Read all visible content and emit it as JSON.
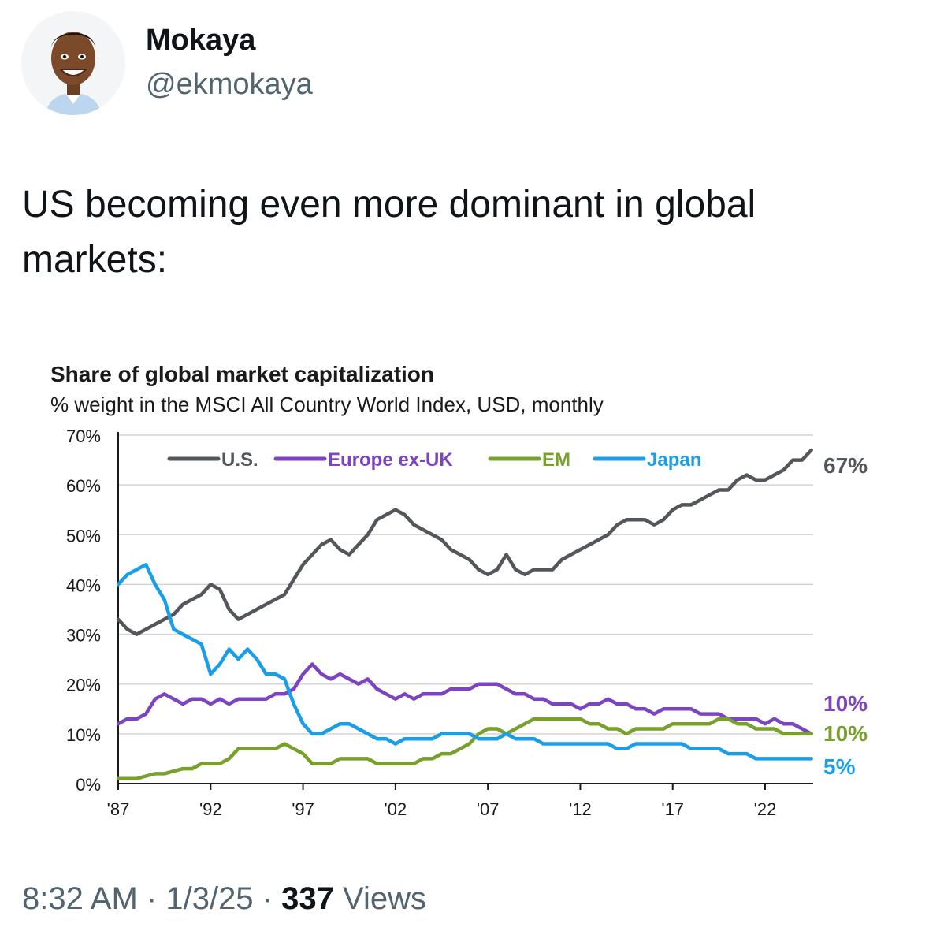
{
  "author": {
    "name": "Mokaya",
    "handle": "@ekmokaya",
    "avatar_icon": "cartoon-avatar-icon"
  },
  "tweet": {
    "text": "US becoming even more dominant in global markets:"
  },
  "footer": {
    "time": "8:32 AM",
    "date": "1/3/25",
    "separator": "·",
    "views_count": "337",
    "views_label": "Views"
  },
  "chart_data": {
    "type": "line",
    "title": "Share of global market capitalization",
    "subtitle": "% weight in the MSCI All Country World Index, USD, monthly",
    "xlabel": "",
    "ylabel": "",
    "ylim": [
      0,
      70
    ],
    "xlim": [
      1987,
      2024.6
    ],
    "y_ticks": [
      0,
      10,
      20,
      30,
      40,
      50,
      60,
      70
    ],
    "y_tick_labels": [
      "0%",
      "10%",
      "20%",
      "30%",
      "40%",
      "50%",
      "60%",
      "70%"
    ],
    "x_ticks": [
      1987,
      1992,
      1997,
      2002,
      2007,
      2012,
      2017,
      2022
    ],
    "x_tick_labels": [
      "'87",
      "'92",
      "'97",
      "'02",
      "'07",
      "'12",
      "'17",
      "'22"
    ],
    "grid": true,
    "legend_position": "top-left",
    "series": [
      {
        "name": "U.S.",
        "color": "#53565a",
        "end_label": "67%",
        "points": [
          [
            1987,
            33
          ],
          [
            1987.5,
            31
          ],
          [
            1988,
            30
          ],
          [
            1988.5,
            31
          ],
          [
            1989,
            32
          ],
          [
            1989.5,
            33
          ],
          [
            1990,
            34
          ],
          [
            1990.5,
            36
          ],
          [
            1991,
            37
          ],
          [
            1991.5,
            38
          ],
          [
            1992,
            40
          ],
          [
            1992.5,
            39
          ],
          [
            1993,
            35
          ],
          [
            1993.5,
            33
          ],
          [
            1994,
            34
          ],
          [
            1994.5,
            35
          ],
          [
            1995,
            36
          ],
          [
            1995.5,
            37
          ],
          [
            1996,
            38
          ],
          [
            1996.5,
            41
          ],
          [
            1997,
            44
          ],
          [
            1997.5,
            46
          ],
          [
            1998,
            48
          ],
          [
            1998.5,
            49
          ],
          [
            1999,
            47
          ],
          [
            1999.5,
            46
          ],
          [
            2000,
            48
          ],
          [
            2000.5,
            50
          ],
          [
            2001,
            53
          ],
          [
            2001.5,
            54
          ],
          [
            2002,
            55
          ],
          [
            2002.5,
            54
          ],
          [
            2003,
            52
          ],
          [
            2003.5,
            51
          ],
          [
            2004,
            50
          ],
          [
            2004.5,
            49
          ],
          [
            2005,
            47
          ],
          [
            2005.5,
            46
          ],
          [
            2006,
            45
          ],
          [
            2006.5,
            43
          ],
          [
            2007,
            42
          ],
          [
            2007.5,
            43
          ],
          [
            2008,
            46
          ],
          [
            2008.5,
            43
          ],
          [
            2009,
            42
          ],
          [
            2009.5,
            43
          ],
          [
            2010,
            43
          ],
          [
            2010.5,
            43
          ],
          [
            2011,
            45
          ],
          [
            2011.5,
            46
          ],
          [
            2012,
            47
          ],
          [
            2012.5,
            48
          ],
          [
            2013,
            49
          ],
          [
            2013.5,
            50
          ],
          [
            2014,
            52
          ],
          [
            2014.5,
            53
          ],
          [
            2015,
            53
          ],
          [
            2015.5,
            53
          ],
          [
            2016,
            52
          ],
          [
            2016.5,
            53
          ],
          [
            2017,
            55
          ],
          [
            2017.5,
            56
          ],
          [
            2018,
            56
          ],
          [
            2018.5,
            57
          ],
          [
            2019,
            58
          ],
          [
            2019.5,
            59
          ],
          [
            2020,
            59
          ],
          [
            2020.5,
            61
          ],
          [
            2021,
            62
          ],
          [
            2021.5,
            61
          ],
          [
            2022,
            61
          ],
          [
            2022.5,
            62
          ],
          [
            2023,
            63
          ],
          [
            2023.5,
            65
          ],
          [
            2024,
            65
          ],
          [
            2024.5,
            67
          ]
        ]
      },
      {
        "name": "Europe ex-UK",
        "color": "#7d44c1",
        "end_label": "10%",
        "points": [
          [
            1987,
            12
          ],
          [
            1987.5,
            13
          ],
          [
            1988,
            13
          ],
          [
            1988.5,
            14
          ],
          [
            1989,
            17
          ],
          [
            1989.5,
            18
          ],
          [
            1990,
            17
          ],
          [
            1990.5,
            16
          ],
          [
            1991,
            17
          ],
          [
            1991.5,
            17
          ],
          [
            1992,
            16
          ],
          [
            1992.5,
            17
          ],
          [
            1993,
            16
          ],
          [
            1993.5,
            17
          ],
          [
            1994,
            17
          ],
          [
            1994.5,
            17
          ],
          [
            1995,
            17
          ],
          [
            1995.5,
            18
          ],
          [
            1996,
            18
          ],
          [
            1996.5,
            19
          ],
          [
            1997,
            22
          ],
          [
            1997.5,
            24
          ],
          [
            1998,
            22
          ],
          [
            1998.5,
            21
          ],
          [
            1999,
            22
          ],
          [
            1999.5,
            21
          ],
          [
            2000,
            20
          ],
          [
            2000.5,
            21
          ],
          [
            2001,
            19
          ],
          [
            2001.5,
            18
          ],
          [
            2002,
            17
          ],
          [
            2002.5,
            18
          ],
          [
            2003,
            17
          ],
          [
            2003.5,
            18
          ],
          [
            2004,
            18
          ],
          [
            2004.5,
            18
          ],
          [
            2005,
            19
          ],
          [
            2005.5,
            19
          ],
          [
            2006,
            19
          ],
          [
            2006.5,
            20
          ],
          [
            2007,
            20
          ],
          [
            2007.5,
            20
          ],
          [
            2008,
            19
          ],
          [
            2008.5,
            18
          ],
          [
            2009,
            18
          ],
          [
            2009.5,
            17
          ],
          [
            2010,
            17
          ],
          [
            2010.5,
            16
          ],
          [
            2011,
            16
          ],
          [
            2011.5,
            16
          ],
          [
            2012,
            15
          ],
          [
            2012.5,
            16
          ],
          [
            2013,
            16
          ],
          [
            2013.5,
            17
          ],
          [
            2014,
            16
          ],
          [
            2014.5,
            16
          ],
          [
            2015,
            15
          ],
          [
            2015.5,
            15
          ],
          [
            2016,
            14
          ],
          [
            2016.5,
            15
          ],
          [
            2017,
            15
          ],
          [
            2017.5,
            15
          ],
          [
            2018,
            15
          ],
          [
            2018.5,
            14
          ],
          [
            2019,
            14
          ],
          [
            2019.5,
            14
          ],
          [
            2020,
            13
          ],
          [
            2020.5,
            13
          ],
          [
            2021,
            13
          ],
          [
            2021.5,
            13
          ],
          [
            2022,
            12
          ],
          [
            2022.5,
            13
          ],
          [
            2023,
            12
          ],
          [
            2023.5,
            12
          ],
          [
            2024,
            11
          ],
          [
            2024.5,
            10
          ]
        ]
      },
      {
        "name": "EM",
        "color": "#77a12a",
        "end_label": "10%",
        "points": [
          [
            1987,
            1
          ],
          [
            1987.5,
            1
          ],
          [
            1988,
            1
          ],
          [
            1988.5,
            1.5
          ],
          [
            1989,
            2
          ],
          [
            1989.5,
            2
          ],
          [
            1990,
            2.5
          ],
          [
            1990.5,
            3
          ],
          [
            1991,
            3
          ],
          [
            1991.5,
            4
          ],
          [
            1992,
            4
          ],
          [
            1992.5,
            4
          ],
          [
            1993,
            5
          ],
          [
            1993.5,
            7
          ],
          [
            1994,
            7
          ],
          [
            1994.5,
            7
          ],
          [
            1995,
            7
          ],
          [
            1995.5,
            7
          ],
          [
            1996,
            8
          ],
          [
            1996.5,
            7
          ],
          [
            1997,
            6
          ],
          [
            1997.5,
            4
          ],
          [
            1998,
            4
          ],
          [
            1998.5,
            4
          ],
          [
            1999,
            5
          ],
          [
            1999.5,
            5
          ],
          [
            2000,
            5
          ],
          [
            2000.5,
            5
          ],
          [
            2001,
            4
          ],
          [
            2001.5,
            4
          ],
          [
            2002,
            4
          ],
          [
            2002.5,
            4
          ],
          [
            2003,
            4
          ],
          [
            2003.5,
            5
          ],
          [
            2004,
            5
          ],
          [
            2004.5,
            6
          ],
          [
            2005,
            6
          ],
          [
            2005.5,
            7
          ],
          [
            2006,
            8
          ],
          [
            2006.5,
            10
          ],
          [
            2007,
            11
          ],
          [
            2007.5,
            11
          ],
          [
            2008,
            10
          ],
          [
            2008.5,
            11
          ],
          [
            2009,
            12
          ],
          [
            2009.5,
            13
          ],
          [
            2010,
            13
          ],
          [
            2010.5,
            13
          ],
          [
            2011,
            13
          ],
          [
            2011.5,
            13
          ],
          [
            2012,
            13
          ],
          [
            2012.5,
            12
          ],
          [
            2013,
            12
          ],
          [
            2013.5,
            11
          ],
          [
            2014,
            11
          ],
          [
            2014.5,
            10
          ],
          [
            2015,
            11
          ],
          [
            2015.5,
            11
          ],
          [
            2016,
            11
          ],
          [
            2016.5,
            11
          ],
          [
            2017,
            12
          ],
          [
            2017.5,
            12
          ],
          [
            2018,
            12
          ],
          [
            2018.5,
            12
          ],
          [
            2019,
            12
          ],
          [
            2019.5,
            13
          ],
          [
            2020,
            13
          ],
          [
            2020.5,
            12
          ],
          [
            2021,
            12
          ],
          [
            2021.5,
            11
          ],
          [
            2022,
            11
          ],
          [
            2022.5,
            11
          ],
          [
            2023,
            10
          ],
          [
            2023.5,
            10
          ],
          [
            2024,
            10
          ],
          [
            2024.5,
            10
          ]
        ]
      },
      {
        "name": "Japan",
        "color": "#1a9ee8",
        "end_label": "5%",
        "points": [
          [
            1987,
            40
          ],
          [
            1987.5,
            42
          ],
          [
            1988,
            43
          ],
          [
            1988.5,
            44
          ],
          [
            1989,
            40
          ],
          [
            1989.5,
            37
          ],
          [
            1990,
            31
          ],
          [
            1990.5,
            30
          ],
          [
            1991,
            29
          ],
          [
            1991.5,
            28
          ],
          [
            1992,
            22
          ],
          [
            1992.5,
            24
          ],
          [
            1993,
            27
          ],
          [
            1993.5,
            25
          ],
          [
            1994,
            27
          ],
          [
            1994.5,
            25
          ],
          [
            1995,
            22
          ],
          [
            1995.5,
            22
          ],
          [
            1996,
            21
          ],
          [
            1996.5,
            16
          ],
          [
            1997,
            12
          ],
          [
            1997.5,
            10
          ],
          [
            1998,
            10
          ],
          [
            1998.5,
            11
          ],
          [
            1999,
            12
          ],
          [
            1999.5,
            12
          ],
          [
            2000,
            11
          ],
          [
            2000.5,
            10
          ],
          [
            2001,
            9
          ],
          [
            2001.5,
            9
          ],
          [
            2002,
            8
          ],
          [
            2002.5,
            9
          ],
          [
            2003,
            9
          ],
          [
            2003.5,
            9
          ],
          [
            2004,
            9
          ],
          [
            2004.5,
            10
          ],
          [
            2005,
            10
          ],
          [
            2005.5,
            10
          ],
          [
            2006,
            10
          ],
          [
            2006.5,
            9
          ],
          [
            2007,
            9
          ],
          [
            2007.5,
            9
          ],
          [
            2008,
            10
          ],
          [
            2008.5,
            9
          ],
          [
            2009,
            9
          ],
          [
            2009.5,
            9
          ],
          [
            2010,
            8
          ],
          [
            2010.5,
            8
          ],
          [
            2011,
            8
          ],
          [
            2011.5,
            8
          ],
          [
            2012,
            8
          ],
          [
            2012.5,
            8
          ],
          [
            2013,
            8
          ],
          [
            2013.5,
            8
          ],
          [
            2014,
            7
          ],
          [
            2014.5,
            7
          ],
          [
            2015,
            8
          ],
          [
            2015.5,
            8
          ],
          [
            2016,
            8
          ],
          [
            2016.5,
            8
          ],
          [
            2017,
            8
          ],
          [
            2017.5,
            8
          ],
          [
            2018,
            7
          ],
          [
            2018.5,
            7
          ],
          [
            2019,
            7
          ],
          [
            2019.5,
            7
          ],
          [
            2020,
            6
          ],
          [
            2020.5,
            6
          ],
          [
            2021,
            6
          ],
          [
            2021.5,
            5
          ],
          [
            2022,
            5
          ],
          [
            2022.5,
            5
          ],
          [
            2023,
            5
          ],
          [
            2023.5,
            5
          ],
          [
            2024,
            5
          ],
          [
            2024.5,
            5
          ]
        ]
      }
    ]
  }
}
